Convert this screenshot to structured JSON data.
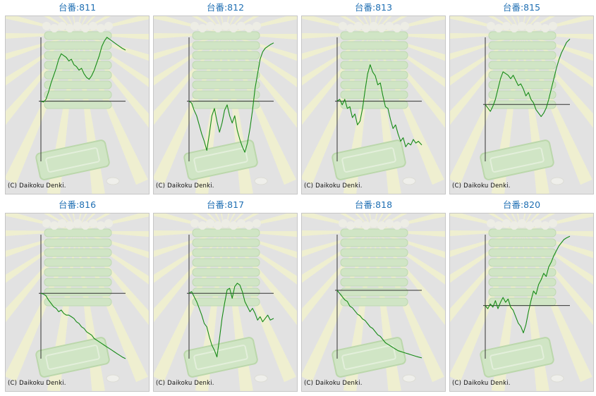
{
  "page": {
    "credit": "(C) Daikoku Denki.",
    "line_color": "#168a16",
    "axis_color": "#333333",
    "title_color": "#1f6fb3"
  },
  "chart_data": [
    {
      "type": "line",
      "title": "台番:811",
      "x": [
        0,
        0.03,
        0.06,
        0.09,
        0.12,
        0.15,
        0.18,
        0.21,
        0.24,
        0.27,
        0.3,
        0.33,
        0.36,
        0.39,
        0.42,
        0.45,
        0.48,
        0.51,
        0.54,
        0.57,
        0.6,
        0.63,
        0.66,
        0.69,
        0.72,
        0.75,
        0.78,
        0.81,
        0.84,
        0.87,
        0.9,
        0.93,
        0.96,
        1.0
      ],
      "y": [
        0,
        -50,
        100,
        500,
        1000,
        1400,
        1800,
        2300,
        2600,
        2500,
        2400,
        2200,
        2300,
        2000,
        1900,
        1700,
        1800,
        1500,
        1300,
        1200,
        1400,
        1700,
        2100,
        2500,
        3000,
        3300,
        3500,
        3400,
        3300,
        3200,
        3100,
        3000,
        2900,
        2800
      ],
      "ylim": [
        -3300,
        3500
      ],
      "xlim": [
        0,
        1
      ]
    },
    {
      "type": "line",
      "title": "台番:812",
      "x": [
        0,
        0.03,
        0.06,
        0.09,
        0.12,
        0.15,
        0.18,
        0.21,
        0.24,
        0.27,
        0.3,
        0.33,
        0.36,
        0.39,
        0.42,
        0.45,
        0.48,
        0.51,
        0.54,
        0.57,
        0.6,
        0.63,
        0.66,
        0.69,
        0.72,
        0.75,
        0.78,
        0.81,
        0.84,
        0.87,
        0.9,
        0.93,
        0.96,
        1.0
      ],
      "y": [
        0,
        -100,
        -500,
        -800,
        -1300,
        -1800,
        -2200,
        -2700,
        -1800,
        -800,
        -400,
        -1100,
        -1700,
        -1200,
        -500,
        -200,
        -800,
        -1200,
        -800,
        -1600,
        -2100,
        -2500,
        -2800,
        -2300,
        -1500,
        -500,
        700,
        1500,
        2300,
        2700,
        2900,
        3000,
        3100,
        3200
      ],
      "ylim": [
        -3300,
        3500
      ],
      "xlim": [
        0,
        1
      ]
    },
    {
      "type": "line",
      "title": "台番:813",
      "x": [
        0,
        0.03,
        0.06,
        0.09,
        0.12,
        0.15,
        0.18,
        0.21,
        0.24,
        0.27,
        0.3,
        0.33,
        0.36,
        0.39,
        0.42,
        0.45,
        0.48,
        0.51,
        0.54,
        0.57,
        0.6,
        0.63,
        0.66,
        0.69,
        0.72,
        0.75,
        0.78,
        0.81,
        0.84,
        0.87,
        0.9,
        0.93,
        0.96,
        1.0
      ],
      "y": [
        0,
        100,
        -200,
        100,
        -400,
        -300,
        -900,
        -700,
        -1300,
        -1100,
        -400,
        600,
        1500,
        2000,
        1600,
        1400,
        900,
        1000,
        300,
        -300,
        -400,
        -1000,
        -1500,
        -1300,
        -1800,
        -2200,
        -2000,
        -2500,
        -2300,
        -2400,
        -2100,
        -2300,
        -2200,
        -2400
      ],
      "ylim": [
        -3300,
        3500
      ],
      "xlim": [
        0,
        1
      ]
    },
    {
      "type": "line",
      "title": "台番:815",
      "x": [
        0,
        0.03,
        0.06,
        0.09,
        0.12,
        0.15,
        0.18,
        0.21,
        0.24,
        0.27,
        0.3,
        0.33,
        0.36,
        0.39,
        0.42,
        0.45,
        0.48,
        0.51,
        0.54,
        0.57,
        0.6,
        0.63,
        0.66,
        0.69,
        0.72,
        0.75,
        0.78,
        0.81,
        0.84,
        0.87,
        0.9,
        0.93,
        0.96,
        1.0
      ],
      "y": [
        0,
        -200,
        -400,
        -100,
        300,
        900,
        1500,
        1900,
        1800,
        1700,
        1500,
        1700,
        1400,
        1100,
        1200,
        900,
        500,
        700,
        300,
        100,
        -300,
        -500,
        -700,
        -500,
        -200,
        300,
        900,
        1500,
        2100,
        2600,
        3000,
        3300,
        3600,
        3800
      ],
      "ylim": [
        -3300,
        3900
      ],
      "xlim": [
        0,
        1
      ]
    },
    {
      "type": "line",
      "title": "台番:816",
      "x": [
        0,
        0.03,
        0.06,
        0.09,
        0.12,
        0.15,
        0.18,
        0.21,
        0.24,
        0.27,
        0.3,
        0.33,
        0.36,
        0.39,
        0.42,
        0.45,
        0.48,
        0.51,
        0.54,
        0.57,
        0.6,
        0.63,
        0.66,
        0.69,
        0.72,
        0.75,
        0.78,
        0.81,
        0.84,
        0.87,
        0.9,
        0.93,
        0.96,
        1.0
      ],
      "y": [
        0,
        -50,
        -150,
        -400,
        -600,
        -800,
        -900,
        -1100,
        -1000,
        -1200,
        -1300,
        -1300,
        -1400,
        -1500,
        -1700,
        -1800,
        -2000,
        -2100,
        -2300,
        -2400,
        -2500,
        -2700,
        -2800,
        -2900,
        -3000,
        -3100,
        -3200,
        -3300,
        -3400,
        -3500,
        -3600,
        -3700,
        -3800,
        -3900
      ],
      "ylim": [
        -3900,
        3500
      ],
      "xlim": [
        0,
        1
      ]
    },
    {
      "type": "line",
      "title": "台番:817",
      "x": [
        0,
        0.03,
        0.06,
        0.09,
        0.12,
        0.15,
        0.18,
        0.21,
        0.24,
        0.27,
        0.3,
        0.33,
        0.36,
        0.39,
        0.42,
        0.45,
        0.48,
        0.51,
        0.54,
        0.57,
        0.6,
        0.63,
        0.66,
        0.69,
        0.72,
        0.75,
        0.78,
        0.81,
        0.84,
        0.87,
        0.9,
        0.93,
        0.96,
        1.0
      ],
      "y": [
        0,
        100,
        -200,
        -500,
        -900,
        -1300,
        -1800,
        -2000,
        -2600,
        -3100,
        -3400,
        -3800,
        -2700,
        -1500,
        -600,
        200,
        300,
        -300,
        400,
        600,
        500,
        100,
        -500,
        -800,
        -1100,
        -900,
        -1200,
        -1600,
        -1400,
        -1700,
        -1500,
        -1300,
        -1600,
        -1500
      ],
      "ylim": [
        -3900,
        3500
      ],
      "xlim": [
        0,
        1
      ]
    },
    {
      "type": "line",
      "title": "台番:818",
      "x": [
        0,
        0.03,
        0.06,
        0.09,
        0.12,
        0.15,
        0.18,
        0.21,
        0.24,
        0.27,
        0.3,
        0.33,
        0.36,
        0.39,
        0.42,
        0.45,
        0.48,
        0.51,
        0.54,
        0.57,
        0.6,
        0.63,
        0.66,
        0.69,
        0.72,
        0.75,
        0.78,
        0.81,
        0.84,
        0.87,
        0.9,
        0.93,
        0.96,
        1.0
      ],
      "y": [
        0,
        -200,
        -400,
        -600,
        -700,
        -1000,
        -1100,
        -1300,
        -1500,
        -1600,
        -1800,
        -1900,
        -2100,
        -2300,
        -2400,
        -2600,
        -2800,
        -2900,
        -3100,
        -3300,
        -3400,
        -3500,
        -3600,
        -3700,
        -3800,
        -3850,
        -3900,
        -3950,
        -4000,
        -4050,
        -4100,
        -4150,
        -4200,
        -4250
      ],
      "ylim": [
        -4300,
        3500
      ],
      "xlim": [
        0,
        1
      ]
    },
    {
      "type": "line",
      "title": "台番:820",
      "x": [
        0,
        0.03,
        0.06,
        0.09,
        0.12,
        0.15,
        0.18,
        0.21,
        0.24,
        0.27,
        0.3,
        0.33,
        0.36,
        0.39,
        0.42,
        0.45,
        0.48,
        0.51,
        0.54,
        0.57,
        0.6,
        0.63,
        0.66,
        0.69,
        0.72,
        0.75,
        0.78,
        0.81,
        0.84,
        0.87,
        0.9,
        0.93,
        0.96,
        1.0
      ],
      "y": [
        0,
        -200,
        100,
        -100,
        300,
        -200,
        200,
        500,
        200,
        400,
        -100,
        -300,
        -700,
        -1100,
        -1300,
        -1700,
        -1200,
        -400,
        300,
        900,
        700,
        1300,
        1600,
        2000,
        1800,
        2400,
        2700,
        3100,
        3400,
        3700,
        3900,
        4100,
        4200,
        4300
      ],
      "ylim": [
        -3300,
        4400
      ],
      "xlim": [
        0,
        1
      ]
    }
  ]
}
